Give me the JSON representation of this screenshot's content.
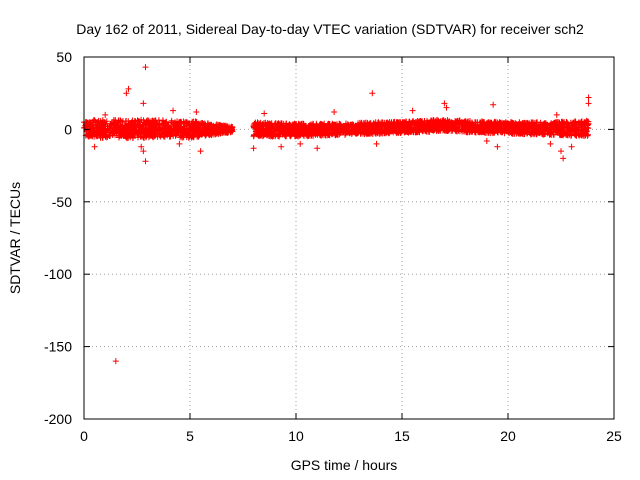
{
  "chart_data": {
    "type": "scatter",
    "title": "Day 162 of 2011, Sidereal Day-to-day VTEC variation (SDTVAR) for receiver sch2",
    "xlabel": "GPS time / hours",
    "ylabel": "SDTVAR / TECUs",
    "xlim": [
      0,
      25
    ],
    "ylim": [
      -200,
      50
    ],
    "grid": true,
    "marker": "+",
    "color": "#ff0000",
    "x_ticks": [
      0,
      5,
      10,
      15,
      20,
      25
    ],
    "y_ticks": [
      -200,
      -150,
      -100,
      -50,
      0,
      50
    ],
    "x_tick_labels": [
      "0",
      "5",
      "10",
      "15",
      "20",
      "25"
    ],
    "y_tick_labels": [
      "-200",
      "-150",
      "-100",
      "-50",
      "0",
      "50"
    ],
    "data_segments": [
      {
        "x_start": 0.0,
        "x_end": 7.0,
        "mean": 0,
        "spread": 3
      },
      {
        "x_start": 8.0,
        "x_end": 23.8,
        "mean": 1,
        "spread": 3
      }
    ],
    "dense_band": [
      {
        "x": 0.0,
        "y_low": -5,
        "y_high": 6
      },
      {
        "x": 1.0,
        "y_low": -6,
        "y_high": 7
      },
      {
        "x": 2.0,
        "y_low": -6,
        "y_high": 6
      },
      {
        "x": 3.0,
        "y_low": -6,
        "y_high": 7
      },
      {
        "x": 4.0,
        "y_low": -5,
        "y_high": 6
      },
      {
        "x": 5.0,
        "y_low": -6,
        "y_high": 6
      },
      {
        "x": 6.0,
        "y_low": -4,
        "y_high": 4
      },
      {
        "x": 7.0,
        "y_low": -2,
        "y_high": 2
      },
      {
        "x": 8.0,
        "y_low": -5,
        "y_high": 5
      },
      {
        "x": 10.0,
        "y_low": -5,
        "y_high": 4
      },
      {
        "x": 12.0,
        "y_low": -4,
        "y_high": 4
      },
      {
        "x": 14.0,
        "y_low": -3,
        "y_high": 5
      },
      {
        "x": 16.0,
        "y_low": -2,
        "y_high": 6
      },
      {
        "x": 17.0,
        "y_low": -1,
        "y_high": 7
      },
      {
        "x": 18.0,
        "y_low": -2,
        "y_high": 6
      },
      {
        "x": 20.0,
        "y_low": -3,
        "y_high": 5
      },
      {
        "x": 22.0,
        "y_low": -4,
        "y_high": 5
      },
      {
        "x": 23.8,
        "y_low": -5,
        "y_high": 6
      }
    ],
    "outliers": [
      {
        "x": 1.5,
        "y": -160
      },
      {
        "x": 2.9,
        "y": 43
      },
      {
        "x": 2.1,
        "y": 28
      },
      {
        "x": 2.0,
        "y": 25
      },
      {
        "x": 2.8,
        "y": 18
      },
      {
        "x": 2.9,
        "y": -22
      },
      {
        "x": 2.8,
        "y": -15
      },
      {
        "x": 2.7,
        "y": -12
      },
      {
        "x": 4.2,
        "y": 13
      },
      {
        "x": 5.3,
        "y": 12
      },
      {
        "x": 4.5,
        "y": -10
      },
      {
        "x": 5.5,
        "y": -15
      },
      {
        "x": 0.5,
        "y": -12
      },
      {
        "x": 1.0,
        "y": 10
      },
      {
        "x": 8.0,
        "y": -13
      },
      {
        "x": 8.5,
        "y": 11
      },
      {
        "x": 9.3,
        "y": -12
      },
      {
        "x": 10.2,
        "y": -10
      },
      {
        "x": 11.0,
        "y": -13
      },
      {
        "x": 11.8,
        "y": 12
      },
      {
        "x": 13.6,
        "y": 25
      },
      {
        "x": 13.8,
        "y": -10
      },
      {
        "x": 15.5,
        "y": 13
      },
      {
        "x": 17.0,
        "y": 18
      },
      {
        "x": 17.1,
        "y": 15
      },
      {
        "x": 19.3,
        "y": 17
      },
      {
        "x": 19.0,
        "y": -8
      },
      {
        "x": 19.5,
        "y": -12
      },
      {
        "x": 22.0,
        "y": -10
      },
      {
        "x": 22.5,
        "y": -15
      },
      {
        "x": 22.6,
        "y": -20
      },
      {
        "x": 23.0,
        "y": -12
      },
      {
        "x": 23.8,
        "y": 22
      },
      {
        "x": 23.8,
        "y": 18
      },
      {
        "x": 22.3,
        "y": 10
      }
    ]
  }
}
